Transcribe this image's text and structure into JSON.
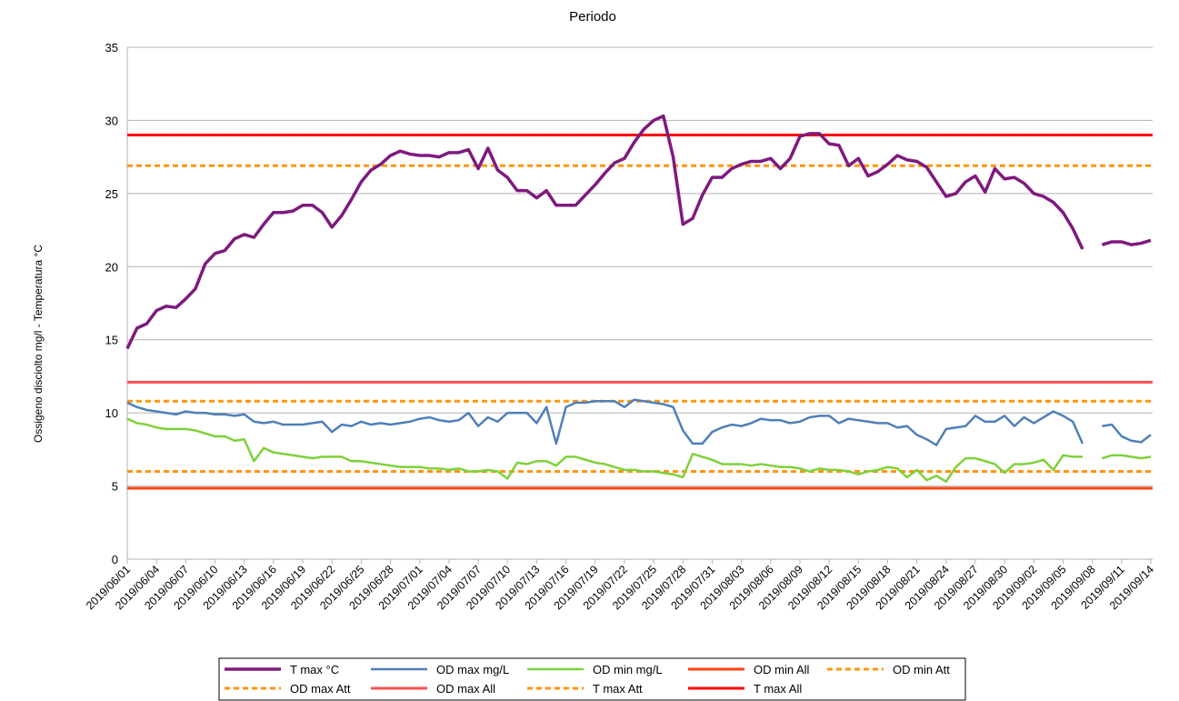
{
  "chart_data": {
    "type": "line",
    "title": "Periodo",
    "y_label": "Ossigeno disciolto mg/l - Temperatura °C",
    "categories": [
      "2019/06/01",
      null,
      null,
      "2019/06/04",
      null,
      null,
      "2019/06/07",
      null,
      null,
      "2019/06/10",
      null,
      null,
      "2019/06/13",
      null,
      null,
      "2019/06/16",
      null,
      null,
      "2019/06/19",
      null,
      null,
      "2019/06/22",
      null,
      null,
      "2019/06/25",
      null,
      null,
      "2019/06/28",
      null,
      null,
      "2019/07/01",
      null,
      null,
      "2019/07/04",
      null,
      null,
      "2019/07/07",
      null,
      null,
      "2019/07/10",
      null,
      null,
      "2019/07/13",
      null,
      null,
      "2019/07/16",
      null,
      null,
      "2019/07/19",
      null,
      null,
      "2019/07/22",
      null,
      null,
      "2019/07/25",
      null,
      null,
      "2019/07/28",
      null,
      null,
      "2019/07/31",
      null,
      null,
      "2019/08/03",
      null,
      null,
      "2019/08/06",
      null,
      null,
      "2019/08/09",
      null,
      null,
      "2019/08/12",
      null,
      null,
      "2019/08/15",
      null,
      null,
      "2019/08/18",
      null,
      null,
      "2019/08/21",
      null,
      null,
      "2019/08/24",
      null,
      null,
      "2019/08/27",
      null,
      null,
      "2019/08/30",
      null,
      null,
      "2019/09/02",
      null,
      null,
      "2019/09/05",
      null,
      null,
      "2019/09/08",
      null,
      null,
      "2019/09/11",
      null,
      null,
      "2019/09/14"
    ],
    "series": [
      {
        "name": "T max °C",
        "color": "#7e1a7e",
        "width": 3.5,
        "values": [
          14.4,
          15.8,
          16.1,
          17.0,
          17.3,
          17.2,
          17.8,
          18.5,
          20.2,
          20.9,
          21.1,
          21.9,
          22.2,
          22.0,
          22.9,
          23.7,
          23.7,
          23.8,
          24.2,
          24.2,
          23.7,
          22.7,
          23.5,
          24.6,
          25.8,
          26.6,
          27.0,
          27.6,
          27.9,
          27.7,
          27.6,
          27.6,
          27.5,
          27.8,
          27.8,
          28.0,
          26.7,
          28.1,
          26.6,
          26.1,
          25.2,
          25.2,
          24.7,
          25.2,
          24.2,
          24.2,
          24.2,
          24.9,
          25.6,
          26.4,
          27.1,
          27.4,
          28.5,
          29.4,
          30.0,
          30.3,
          27.5,
          22.9,
          23.3,
          24.9,
          26.1,
          26.1,
          26.7,
          27.0,
          27.2,
          27.2,
          27.4,
          26.7,
          27.4,
          28.9,
          29.1,
          29.1,
          28.4,
          28.3,
          26.9,
          27.4,
          26.2,
          26.5,
          27.0,
          27.6,
          27.3,
          27.2,
          26.8,
          25.8,
          24.8,
          25.0,
          25.8,
          26.2,
          25.1,
          26.7,
          26.0,
          26.1,
          25.7,
          25.0,
          24.8,
          24.4,
          23.7,
          22.6,
          21.2,
          null,
          21.5,
          21.7,
          21.7,
          21.5,
          21.6,
          21.8
        ]
      },
      {
        "name": "OD max mg/L",
        "color": "#4f7fb8",
        "width": 2.5,
        "values": [
          10.7,
          10.4,
          10.2,
          10.1,
          10.0,
          9.9,
          10.1,
          10.0,
          10.0,
          9.9,
          9.9,
          9.8,
          9.9,
          9.4,
          9.3,
          9.4,
          9.2,
          9.2,
          9.2,
          9.3,
          9.4,
          8.7,
          9.2,
          9.1,
          9.4,
          9.2,
          9.3,
          9.2,
          9.3,
          9.4,
          9.6,
          9.7,
          9.5,
          9.4,
          9.5,
          10.0,
          9.1,
          9.7,
          9.4,
          10.0,
          10.0,
          10.0,
          9.3,
          10.4,
          7.9,
          10.4,
          10.7,
          10.7,
          10.8,
          10.8,
          10.8,
          10.4,
          10.9,
          10.8,
          10.7,
          10.6,
          10.4,
          8.8,
          7.9,
          7.9,
          8.7,
          9.0,
          9.2,
          9.1,
          9.3,
          9.6,
          9.5,
          9.5,
          9.3,
          9.4,
          9.7,
          9.8,
          9.8,
          9.3,
          9.6,
          9.5,
          9.4,
          9.3,
          9.3,
          9.0,
          9.1,
          8.5,
          8.2,
          7.8,
          8.9,
          9.0,
          9.1,
          9.8,
          9.4,
          9.4,
          9.8,
          9.1,
          9.7,
          9.3,
          9.7,
          10.1,
          9.8,
          9.4,
          7.9,
          null,
          9.1,
          9.2,
          8.4,
          8.1,
          8.0,
          8.5
        ]
      },
      {
        "name": "OD  min mg/L",
        "color": "#7fd13b",
        "width": 2.5,
        "values": [
          9.6,
          9.3,
          9.2,
          9.0,
          8.9,
          8.9,
          8.9,
          8.8,
          8.6,
          8.4,
          8.4,
          8.1,
          8.2,
          6.7,
          7.6,
          7.3,
          7.2,
          7.1,
          7.0,
          6.9,
          7.0,
          7.0,
          7.0,
          6.7,
          6.7,
          6.6,
          6.5,
          6.4,
          6.3,
          6.3,
          6.3,
          6.2,
          6.2,
          6.1,
          6.2,
          6.0,
          6.0,
          6.1,
          6.0,
          5.5,
          6.6,
          6.5,
          6.7,
          6.7,
          6.4,
          7.0,
          7.0,
          6.8,
          6.6,
          6.5,
          6.3,
          6.1,
          6.1,
          6.0,
          6.0,
          5.9,
          5.8,
          5.6,
          7.2,
          7.0,
          6.8,
          6.5,
          6.5,
          6.5,
          6.4,
          6.5,
          6.4,
          6.3,
          6.3,
          6.2,
          6.0,
          6.2,
          6.1,
          6.1,
          6.0,
          5.8,
          6.0,
          6.1,
          6.3,
          6.2,
          5.6,
          6.1,
          5.4,
          5.7,
          5.3,
          6.3,
          6.9,
          6.9,
          6.7,
          6.5,
          5.9,
          6.5,
          6.5,
          6.6,
          6.8,
          6.1,
          7.1,
          7.0,
          7.0,
          null,
          6.9,
          7.1,
          7.1,
          7.0,
          6.9,
          7.0
        ]
      },
      {
        "name": "OD min All",
        "color": "#ff420e",
        "width": 3,
        "value": 4.85
      },
      {
        "name": "OD min Att",
        "color": "#ff950e",
        "width": 3,
        "dashed": true,
        "value": 6.0
      },
      {
        "name": "OD max Att",
        "color": "#ff950e",
        "width": 3,
        "dashed": true,
        "value": 10.8
      },
      {
        "name": "OD max All",
        "color": "#ff5050",
        "width": 3,
        "value": 12.1
      },
      {
        "name": "T max Att",
        "color": "#ff950e",
        "width": 3,
        "dashed": true,
        "value": 26.9
      },
      {
        "name": "T max All",
        "color": "#ff0000",
        "width": 3,
        "value": 29.0
      }
    ],
    "ylim": [
      0,
      35
    ],
    "yticks": [
      0,
      5,
      10,
      15,
      20,
      25,
      30,
      35
    ],
    "grid": true,
    "legend": "bottom"
  }
}
